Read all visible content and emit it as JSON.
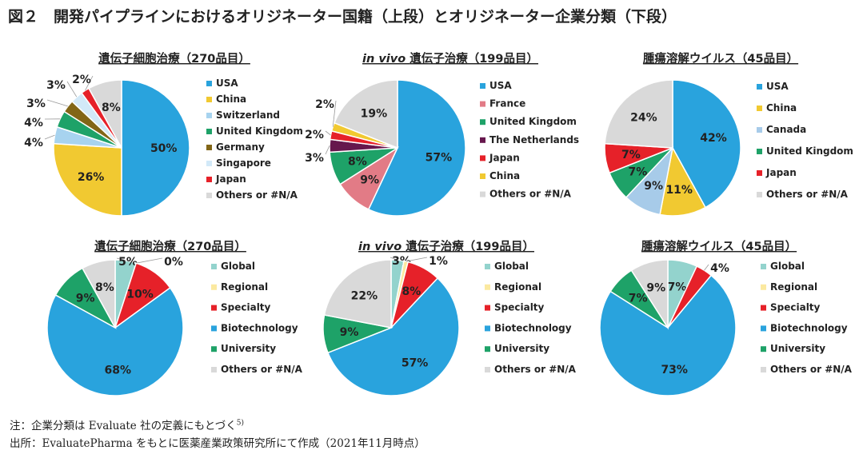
{
  "figure": {
    "title": "図２　開発パイプラインにおけるオリジネーター国籍（上段）とオリジネーター企業分類（下段）",
    "note": "注：企業分類は Evaluate 社の定義にもとづく",
    "note_superscript": "5)",
    "source": "出所：EvaluatePharma をもとに医薬産業政策研究所にて作成（2021年11月時点）"
  },
  "colors": {
    "usa": "#29a3dd",
    "china": "#f1c931",
    "switzerland": "#a7d3ef",
    "united_kingdom": "#1ea268",
    "germany": "#826617",
    "singapore": "#d2e9f8",
    "japan": "#e62129",
    "others": "#d9d9d9",
    "france": "#e27b86",
    "netherlands": "#66174d",
    "canada": "#a7cbe9",
    "global": "#93d3cd",
    "regional": "#fbe9a0",
    "specialty": "#e62129",
    "biotechnology": "#29a3dd",
    "university": "#1ea268"
  },
  "chart_data": [
    {
      "type": "pie",
      "title": "遺伝子細胞治療（270品目）",
      "title_italic_prefix": "",
      "legend": "right",
      "slices": [
        {
          "label": "USA",
          "value": 50,
          "display": "50%",
          "color": "#29a3dd"
        },
        {
          "label": "China",
          "value": 26,
          "display": "26%",
          "color": "#f1c931"
        },
        {
          "label": "Switzerland",
          "value": 4,
          "display": "4%",
          "color": "#a7d3ef"
        },
        {
          "label": "United Kingdom",
          "value": 4,
          "display": "4%",
          "color": "#1ea268"
        },
        {
          "label": "Germany",
          "value": 3,
          "display": "3%",
          "color": "#826617"
        },
        {
          "label": "Singapore",
          "value": 3,
          "display": "3%",
          "color": "#d2e9f8"
        },
        {
          "label": "Japan",
          "value": 2,
          "display": "2%",
          "color": "#e62129"
        },
        {
          "label": "Others or #N/A",
          "value": 8,
          "display": "8%",
          "color": "#d9d9d9"
        }
      ]
    },
    {
      "type": "pie",
      "title": "遺伝子治療（199品目）",
      "title_italic_prefix": "in vivo",
      "legend": "right",
      "slices": [
        {
          "label": "USA",
          "value": 57,
          "display": "57%",
          "color": "#29a3dd"
        },
        {
          "label": "France",
          "value": 9,
          "display": "9%",
          "color": "#e27b86"
        },
        {
          "label": "United Kingdom",
          "value": 8,
          "display": "8%",
          "color": "#1ea268"
        },
        {
          "label": "The Netherlands",
          "value": 3,
          "display": "3%",
          "color": "#66174d"
        },
        {
          "label": "Japan",
          "value": 2,
          "display": "2%",
          "color": "#e62129"
        },
        {
          "label": "China",
          "value": 2,
          "display": "2%",
          "color": "#f1c931"
        },
        {
          "label": "Others or #N/A",
          "value": 19,
          "display": "19%",
          "color": "#d9d9d9"
        }
      ]
    },
    {
      "type": "pie",
      "title": "腫瘍溶解ウイルス（45品目）",
      "title_italic_prefix": "",
      "legend": "right",
      "slices": [
        {
          "label": "USA",
          "value": 42,
          "display": "42%",
          "color": "#29a3dd"
        },
        {
          "label": "China",
          "value": 11,
          "display": "11%",
          "color": "#f1c931"
        },
        {
          "label": "Canada",
          "value": 9,
          "display": "9%",
          "color": "#a7cbe9"
        },
        {
          "label": "United Kingdom",
          "value": 7,
          "display": "7%",
          "color": "#1ea268"
        },
        {
          "label": "Japan",
          "value": 7,
          "display": "7%",
          "color": "#e62129"
        },
        {
          "label": "Others or #N/A",
          "value": 24,
          "display": "24%",
          "color": "#d9d9d9"
        }
      ]
    },
    {
      "type": "pie",
      "title": "遺伝子細胞治療（270品目）",
      "title_italic_prefix": "",
      "legend": "right",
      "slices": [
        {
          "label": "Global",
          "value": 5,
          "display": "5%",
          "color": "#93d3cd"
        },
        {
          "label": "Regional",
          "value": 0,
          "display": "0%",
          "color": "#fbe9a0"
        },
        {
          "label": "Specialty",
          "value": 10,
          "display": "10%",
          "color": "#e62129"
        },
        {
          "label": "Biotechnology",
          "value": 68,
          "display": "68%",
          "color": "#29a3dd"
        },
        {
          "label": "University",
          "value": 9,
          "display": "9%",
          "color": "#1ea268"
        },
        {
          "label": "Others or #N/A",
          "value": 8,
          "display": "8%",
          "color": "#d9d9d9"
        }
      ]
    },
    {
      "type": "pie",
      "title": "遺伝子治療（199品目）",
      "title_italic_prefix": "in vivo",
      "legend": "right",
      "slices": [
        {
          "label": "Global",
          "value": 3,
          "display": "3%",
          "color": "#93d3cd"
        },
        {
          "label": "Regional",
          "value": 1,
          "display": "1%",
          "color": "#fbe9a0"
        },
        {
          "label": "Specialty",
          "value": 8,
          "display": "8%",
          "color": "#e62129"
        },
        {
          "label": "Biotechnology",
          "value": 57,
          "display": "57%",
          "color": "#29a3dd"
        },
        {
          "label": "University",
          "value": 9,
          "display": "9%",
          "color": "#1ea268"
        },
        {
          "label": "Others or #N/A",
          "value": 22,
          "display": "22%",
          "color": "#d9d9d9"
        }
      ]
    },
    {
      "type": "pie",
      "title": "腫瘍溶解ウイルス（45品目）",
      "title_italic_prefix": "",
      "legend": "right",
      "slices": [
        {
          "label": "Global",
          "value": 7,
          "display": "7%",
          "color": "#93d3cd"
        },
        {
          "label": "Regional",
          "value": 0,
          "display": "",
          "color": "#fbe9a0"
        },
        {
          "label": "Specialty",
          "value": 4,
          "display": "4%",
          "color": "#e62129"
        },
        {
          "label": "Biotechnology",
          "value": 73,
          "display": "73%",
          "color": "#29a3dd"
        },
        {
          "label": "University",
          "value": 7,
          "display": "7%",
          "color": "#1ea268"
        },
        {
          "label": "Others or #N/A",
          "value": 9,
          "display": "9%",
          "color": "#d9d9d9"
        }
      ]
    }
  ]
}
